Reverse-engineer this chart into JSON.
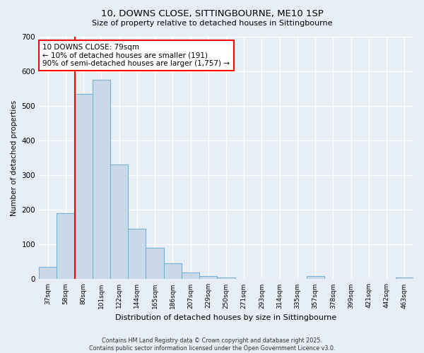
{
  "title1": "10, DOWNS CLOSE, SITTINGBOURNE, ME10 1SP",
  "title2": "Size of property relative to detached houses in Sittingbourne",
  "xlabel": "Distribution of detached houses by size in Sittingbourne",
  "ylabel": "Number of detached properties",
  "categories": [
    "37sqm",
    "58sqm",
    "80sqm",
    "101sqm",
    "122sqm",
    "144sqm",
    "165sqm",
    "186sqm",
    "207sqm",
    "229sqm",
    "250sqm",
    "271sqm",
    "293sqm",
    "314sqm",
    "335sqm",
    "357sqm",
    "378sqm",
    "399sqm",
    "421sqm",
    "442sqm",
    "463sqm"
  ],
  "values": [
    35,
    190,
    535,
    575,
    330,
    145,
    90,
    45,
    20,
    8,
    5,
    0,
    0,
    0,
    0,
    8,
    0,
    0,
    0,
    0,
    5
  ],
  "bar_color": "#c9d9ea",
  "bar_edge_color": "#6aaed6",
  "background_color": "#e8eef5",
  "grid_color": "#ffffff",
  "red_line_x": 1.5,
  "annotation_title": "10 DOWNS CLOSE: 79sqm",
  "annotation_line2": "← 10% of detached houses are smaller (191)",
  "annotation_line3": "90% of semi-detached houses are larger (1,757) →",
  "footnote1": "Contains HM Land Registry data © Crown copyright and database right 2025.",
  "footnote2": "Contains public sector information licensed under the Open Government Licence v3.0.",
  "ylim": [
    0,
    700
  ],
  "yticks": [
    0,
    100,
    200,
    300,
    400,
    500,
    600,
    700
  ]
}
